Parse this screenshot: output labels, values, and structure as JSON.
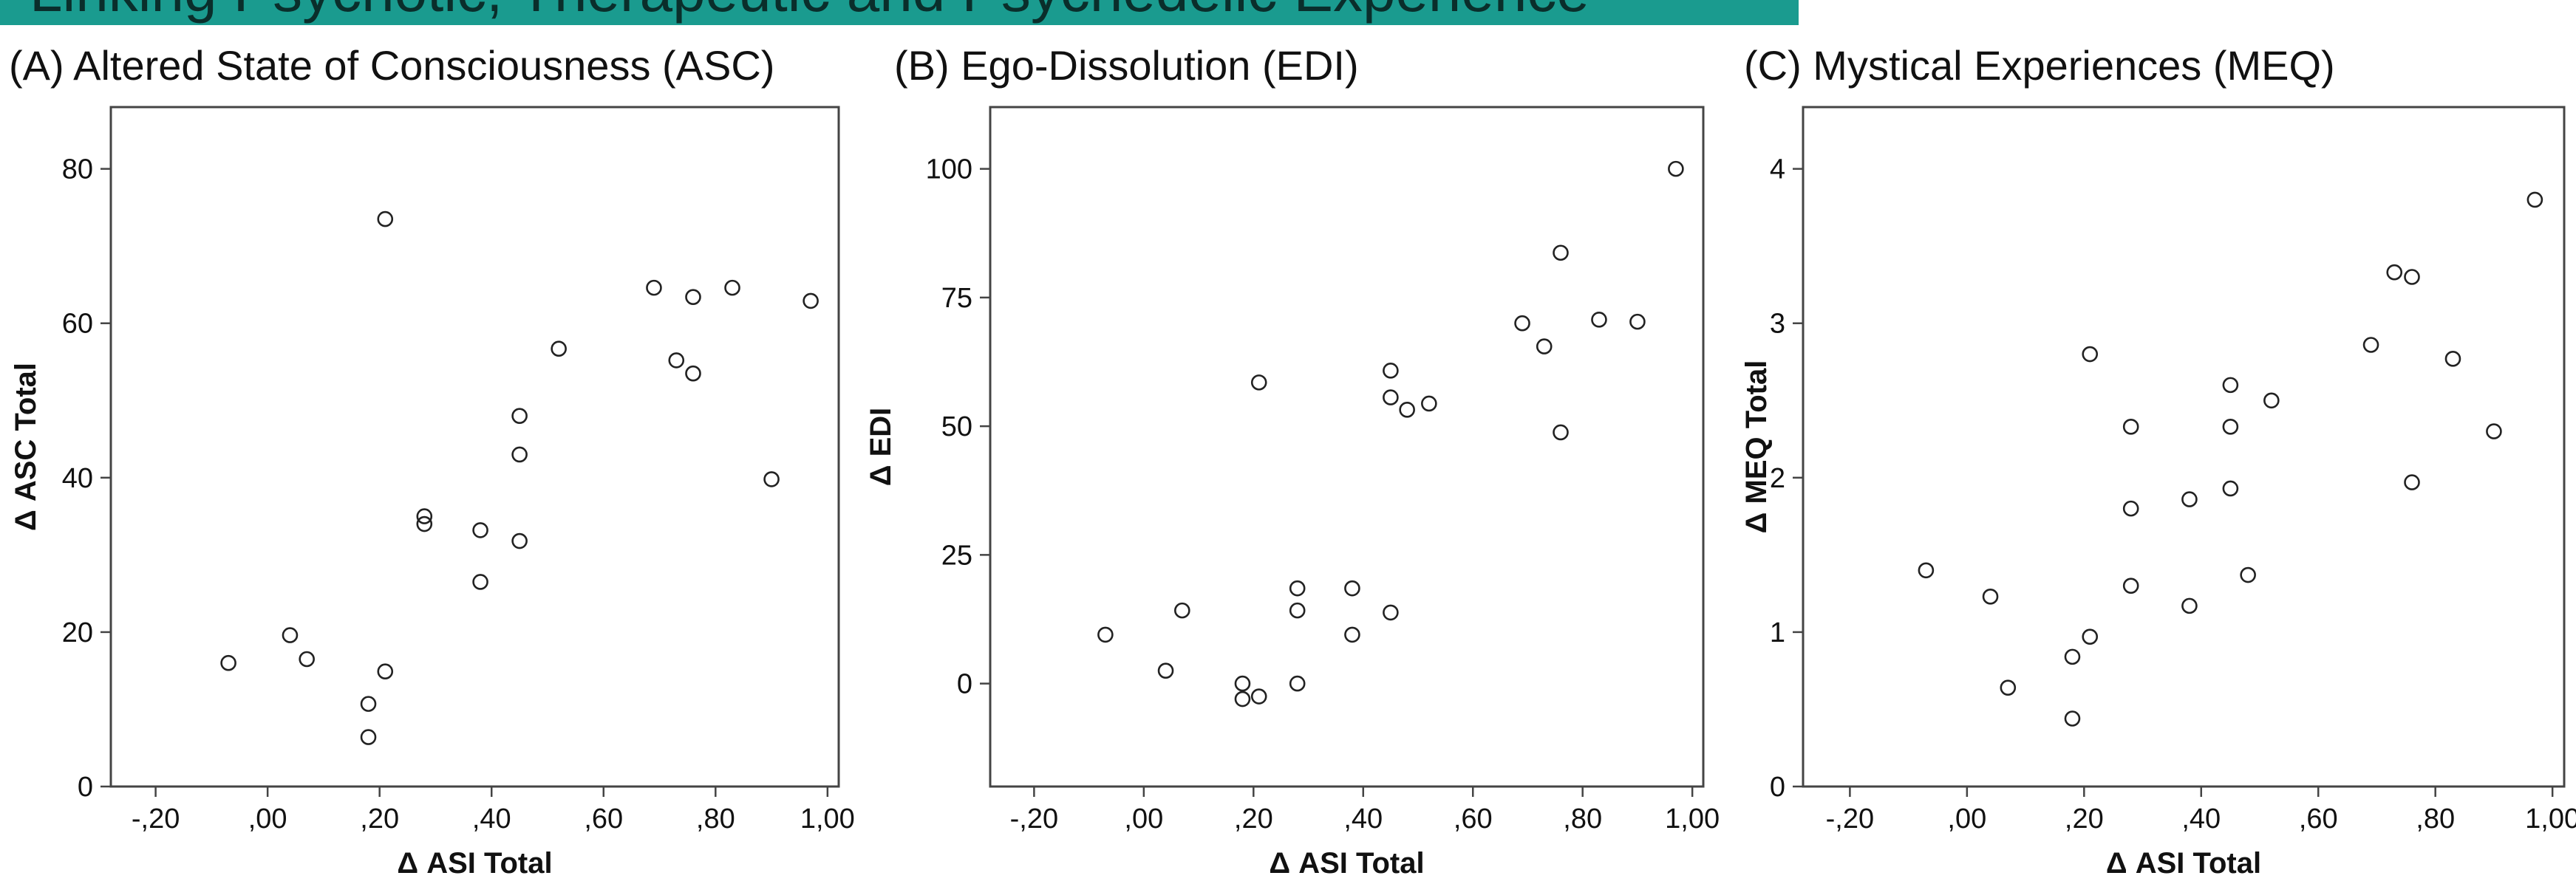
{
  "banner": {
    "text": "Linking Psychotic, Therapeutic and Psychedelic Experience"
  },
  "chart_data": [
    {
      "type": "scatter",
      "title": "(A) Altered State of Consciousness (ASC)",
      "xlabel": "Δ ASI Total",
      "ylabel": "Δ ASC Total",
      "xlim": [
        -0.28,
        1.02
      ],
      "ylim": [
        0,
        88
      ],
      "xticks": [
        -0.2,
        0,
        0.2,
        0.4,
        0.6,
        0.8,
        1.0
      ],
      "xtick_labels": [
        "-,20",
        ",00",
        ",20",
        ",40",
        ",60",
        ",80",
        "1,00"
      ],
      "yticks": [
        0,
        20,
        40,
        60,
        80
      ],
      "ytick_labels": [
        "0",
        "20",
        "40",
        "60",
        "80"
      ],
      "grid": false,
      "x": [
        -0.07,
        0.04,
        0.07,
        0.18,
        0.18,
        0.21,
        0.21,
        0.28,
        0.28,
        0.38,
        0.38,
        0.45,
        0.45,
        0.45,
        0.52,
        0.69,
        0.73,
        0.76,
        0.76,
        0.83,
        0.9,
        0.97
      ],
      "y": [
        16,
        19.6,
        16.5,
        10.7,
        6.4,
        14.9,
        73.5,
        35,
        34,
        33.2,
        26.5,
        48,
        43,
        31.8,
        56.7,
        64.6,
        55.2,
        63.4,
        53.5,
        64.6,
        39.8,
        62.9
      ]
    },
    {
      "type": "scatter",
      "title": "(B) Ego-Dissolution (EDI)",
      "xlabel": "Δ ASI Total",
      "ylabel": "Δ EDI",
      "xlim": [
        -0.28,
        1.02
      ],
      "ylim": [
        -20,
        112
      ],
      "xticks": [
        -0.2,
        0,
        0.2,
        0.4,
        0.6,
        0.8,
        1.0
      ],
      "xtick_labels": [
        "-,20",
        ",00",
        ",20",
        ",40",
        ",60",
        ",80",
        "1,00"
      ],
      "yticks": [
        0,
        25,
        50,
        75,
        100
      ],
      "ytick_labels": [
        "0",
        "25",
        "50",
        "75",
        "100"
      ],
      "grid": false,
      "x": [
        -0.07,
        0.04,
        0.07,
        0.18,
        0.18,
        0.21,
        0.21,
        0.28,
        0.28,
        0.28,
        0.38,
        0.38,
        0.45,
        0.45,
        0.45,
        0.48,
        0.52,
        0.69,
        0.73,
        0.76,
        0.76,
        0.83,
        0.9,
        0.97
      ],
      "y": [
        9.5,
        2.5,
        14.2,
        0,
        -3,
        -2.5,
        58.5,
        18.5,
        14.2,
        0,
        18.5,
        9.5,
        13.8,
        60.8,
        55.6,
        53.2,
        54.4,
        70,
        65.5,
        83.7,
        48.8,
        70.7,
        70.3,
        100
      ]
    },
    {
      "type": "scatter",
      "title": "(C) Mystical Experiences (MEQ)",
      "xlabel": "Δ ASI Total",
      "ylabel": "Δ MEQ Total",
      "xlim": [
        -0.28,
        1.02
      ],
      "ylim": [
        0,
        4.4
      ],
      "xticks": [
        -0.2,
        0,
        0.2,
        0.4,
        0.6,
        0.8,
        1.0
      ],
      "xtick_labels": [
        "-,20",
        ",00",
        ",20",
        ",40",
        ",60",
        ",80",
        "1,00"
      ],
      "yticks": [
        0,
        1,
        2,
        3,
        4
      ],
      "ytick_labels": [
        "0",
        "1",
        "2",
        "3",
        "4"
      ],
      "grid": false,
      "x": [
        -0.07,
        0.04,
        0.07,
        0.18,
        0.18,
        0.21,
        0.21,
        0.28,
        0.28,
        0.28,
        0.38,
        0.38,
        0.45,
        0.45,
        0.45,
        0.48,
        0.52,
        0.69,
        0.73,
        0.76,
        0.76,
        0.83,
        0.9,
        0.97
      ],
      "y": [
        1.4,
        1.23,
        0.64,
        0.84,
        0.44,
        0.97,
        2.8,
        2.33,
        1.8,
        1.3,
        1.86,
        1.17,
        2.6,
        2.33,
        1.93,
        1.37,
        2.5,
        2.86,
        3.33,
        3.3,
        1.97,
        2.77,
        2.3,
        3.8
      ]
    }
  ]
}
